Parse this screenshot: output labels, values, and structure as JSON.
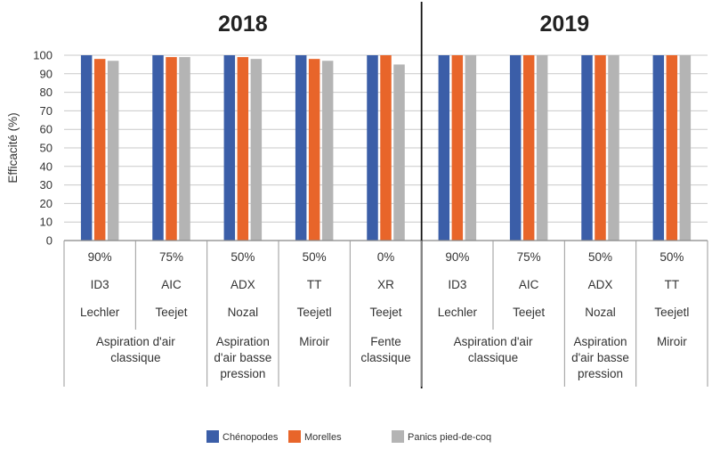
{
  "chart_data": {
    "type": "bar",
    "ylabel": "Efficacité  (%)",
    "ylim": [
      0,
      100
    ],
    "yticks": [
      0,
      10,
      20,
      30,
      40,
      50,
      60,
      70,
      80,
      90,
      100
    ],
    "grid": true,
    "legend_position": "bottom",
    "colors": {
      "Chénopodes": "#3b5ea8",
      "Morelles": "#e8652a",
      "Panics pied-de-coq": "#b4b4b4"
    },
    "series": [
      {
        "name": "Chénopodes",
        "values": [
          100,
          100,
          100,
          100,
          100,
          100,
          100,
          100,
          100
        ]
      },
      {
        "name": "Morelles",
        "values": [
          98,
          99,
          99,
          98,
          100,
          100,
          100,
          100,
          100
        ]
      },
      {
        "name": "Panics pied-de-coq",
        "values": [
          97,
          99,
          98,
          97,
          95,
          100,
          100,
          100,
          100
        ]
      }
    ],
    "panels": [
      {
        "title": "2018",
        "groups": [
          0,
          1,
          2,
          3,
          4
        ]
      },
      {
        "title": "2019",
        "groups": [
          5,
          6,
          7,
          8
        ]
      }
    ],
    "categories": [
      {
        "reduction": "90%",
        "buse": "ID3",
        "marque": "Lechler"
      },
      {
        "reduction": "75%",
        "buse": "AIC",
        "marque": "Teejet"
      },
      {
        "reduction": "50%",
        "buse": "ADX",
        "marque": "Nozal"
      },
      {
        "reduction": "50%",
        "buse": "TT",
        "marque": "Teejetl"
      },
      {
        "reduction": "0%",
        "buse": "XR",
        "marque": "Teejet"
      },
      {
        "reduction": "90%",
        "buse": "ID3",
        "marque": "Lechler"
      },
      {
        "reduction": "75%",
        "buse": "AIC",
        "marque": "Teejet"
      },
      {
        "reduction": "50%",
        "buse": "ADX",
        "marque": "Nozal"
      },
      {
        "reduction": "50%",
        "buse": "TT",
        "marque": "Teejetl"
      }
    ],
    "type_groups": [
      {
        "lines": [
          "Aspiration d'air",
          "classique"
        ],
        "span": [
          0,
          1
        ]
      },
      {
        "lines": [
          "Aspiration",
          "d'air basse",
          "pression"
        ],
        "span": [
          2,
          2
        ]
      },
      {
        "lines": [
          "Miroir"
        ],
        "span": [
          3,
          3
        ]
      },
      {
        "lines": [
          "Fente",
          "classique"
        ],
        "span": [
          4,
          4
        ]
      },
      {
        "lines": [
          "Aspiration d'air",
          "classique"
        ],
        "span": [
          5,
          6
        ]
      },
      {
        "lines": [
          "Aspiration",
          "d'air basse",
          "pression"
        ],
        "span": [
          7,
          7
        ]
      },
      {
        "lines": [
          "Miroir"
        ],
        "span": [
          8,
          8
        ]
      }
    ]
  }
}
